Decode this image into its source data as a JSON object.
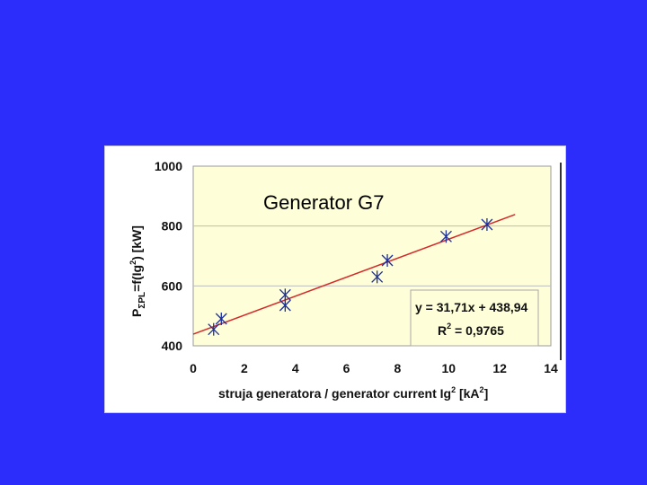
{
  "colors": {
    "background": "#2d2dfb",
    "plot_area": "#fefed8",
    "trendline": "#d42a2a",
    "marker": "#1a2f9e",
    "gridline": "#bdbdbd"
  },
  "chart_data": {
    "type": "scatter",
    "title": "Generator G7",
    "xlabel": "struja generatora / generator current Ig² [kA²]",
    "ylabel": "PΣPL=f(Ig²) [kW]",
    "xlim": [
      0,
      14
    ],
    "ylim": [
      400,
      1000
    ],
    "xticks": [
      "0",
      "2",
      "4",
      "6",
      "8",
      "10",
      "12",
      "14"
    ],
    "yticks": [
      "400",
      "600",
      "800",
      "1000"
    ],
    "grid": "horizontal",
    "points": [
      {
        "x": 0.8,
        "y": 455
      },
      {
        "x": 1.1,
        "y": 490
      },
      {
        "x": 3.6,
        "y": 535
      },
      {
        "x": 3.6,
        "y": 570
      },
      {
        "x": 7.2,
        "y": 630
      },
      {
        "x": 7.6,
        "y": 685
      },
      {
        "x": 9.9,
        "y": 765
      },
      {
        "x": 11.5,
        "y": 805
      }
    ],
    "trendline": {
      "slope": 31.71,
      "intercept": 438.94,
      "x_range": [
        0,
        12.6
      ],
      "equation": "y = 31,71x + 438,94",
      "r2_label": "R",
      "r2_value": " = 0,9765"
    }
  }
}
